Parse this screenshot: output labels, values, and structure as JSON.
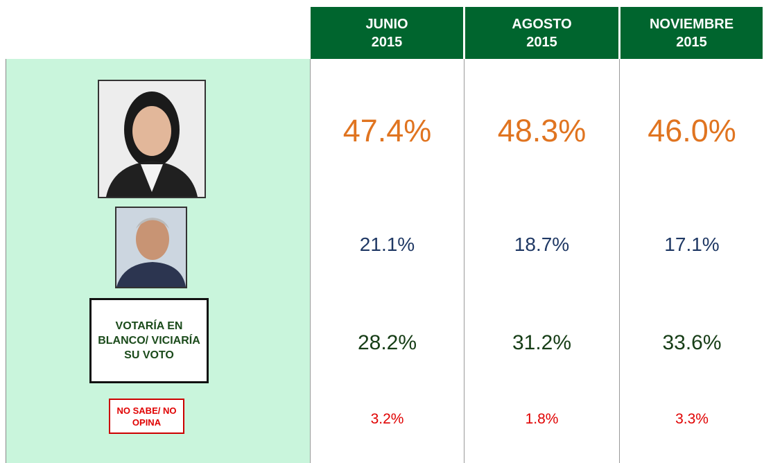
{
  "table": {
    "columns": [
      {
        "month": "JUNIO",
        "year": "2015"
      },
      {
        "month": "AGOSTO",
        "year": "2015"
      },
      {
        "month": "NOVIEMBRE",
        "year": "2015"
      }
    ],
    "rows": [
      {
        "values": [
          "47.4%",
          "48.3%",
          "46.0%"
        ]
      },
      {
        "values": [
          "21.1%",
          "18.7%",
          "17.1%"
        ]
      },
      {
        "label": "VOTARÍA EN BLANCO/ VICIARÍA SU VOTO",
        "values": [
          "28.2%",
          "31.2%",
          "33.6%"
        ]
      },
      {
        "label": "NO SABE/ NO OPINA",
        "values": [
          "3.2%",
          "1.8%",
          "3.3%"
        ]
      }
    ]
  }
}
